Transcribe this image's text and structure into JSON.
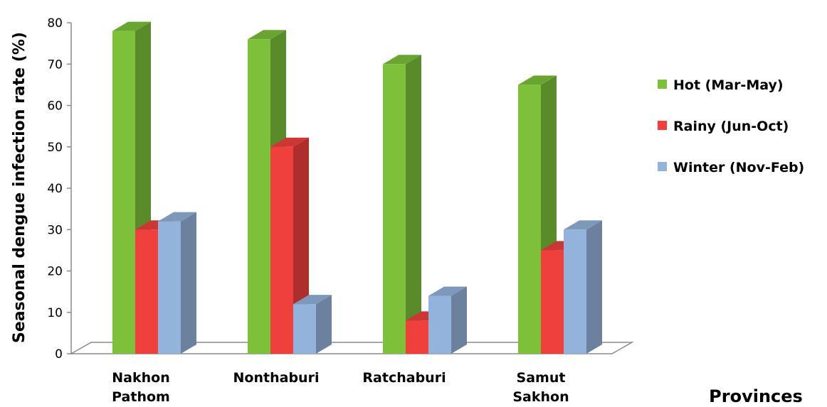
{
  "chart_data": {
    "type": "bar",
    "style": "3d-clustered-column",
    "categories": [
      [
        "Nakhon",
        "Pathom"
      ],
      [
        "Nonthaburi"
      ],
      [
        "Ratchaburi"
      ],
      [
        "Samut",
        "Sakhon"
      ]
    ],
    "series": [
      {
        "name": "Hot (Mar-May)",
        "color": "#7dc13a",
        "values": [
          78,
          76,
          70,
          65
        ]
      },
      {
        "name": "Rainy (Jun-Oct)",
        "color": "#f0403c",
        "values": [
          30,
          50,
          8,
          25
        ]
      },
      {
        "name": "Winter (Nov-Feb)",
        "color": "#94b3dc",
        "values": [
          32,
          12,
          14,
          30
        ]
      }
    ],
    "ylabel": "Seasonal dengue infection rate (%)",
    "xlabel": "Provinces",
    "ylim": [
      0,
      80
    ],
    "yticks": [
      0,
      10,
      20,
      30,
      40,
      50,
      60,
      70,
      80
    ],
    "grid": false,
    "legend_position": "right"
  }
}
